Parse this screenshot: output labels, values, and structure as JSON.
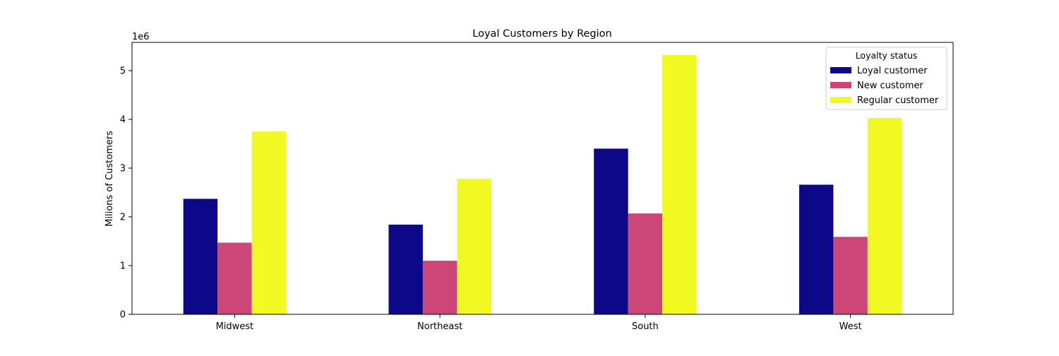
{
  "chart_data": {
    "type": "bar",
    "title": "Loyal Customers by Region",
    "xlabel": "",
    "ylabel": "Milions of Customers",
    "y_offset_text": "1e6",
    "y_scale": 1000000,
    "ylim": [
      0,
      5580000
    ],
    "yticks": [
      0,
      1,
      2,
      3,
      4,
      5
    ],
    "grid": false,
    "legend": {
      "title": "Loyalty status",
      "placement": "top-right"
    },
    "categories": [
      "Midwest",
      "Northeast",
      "South",
      "West"
    ],
    "series": [
      {
        "name": "Loyal customer",
        "color": "#0d0887",
        "values": [
          2370000,
          1840000,
          3400000,
          2660000
        ]
      },
      {
        "name": "New customer",
        "color": "#cc4778",
        "values": [
          1470000,
          1100000,
          2070000,
          1590000
        ]
      },
      {
        "name": "Regular customer",
        "color": "#f0f921",
        "values": [
          3750000,
          2780000,
          5320000,
          4030000
        ]
      }
    ]
  }
}
